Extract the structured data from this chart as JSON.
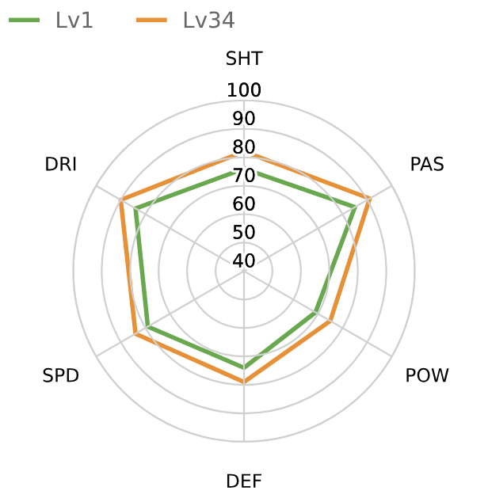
{
  "chart_data": {
    "type": "radar",
    "categories": [
      "SHT",
      "PAS",
      "POW",
      "DEF",
      "SPD",
      "DRI"
    ],
    "series": [
      {
        "name": "Lv1",
        "color": "#6aa84f",
        "values": [
          76,
          85,
          69,
          74,
          79,
          84
        ]
      },
      {
        "name": "Lv34",
        "color": "#e69138",
        "values": [
          82,
          91,
          75,
          79,
          84,
          90
        ]
      }
    ],
    "ylim": [
      40,
      100
    ],
    "yticks": [
      40,
      50,
      60,
      70,
      80,
      90,
      100
    ],
    "grid": true,
    "legend": "top left",
    "marker": "none",
    "line_style": "solid"
  }
}
